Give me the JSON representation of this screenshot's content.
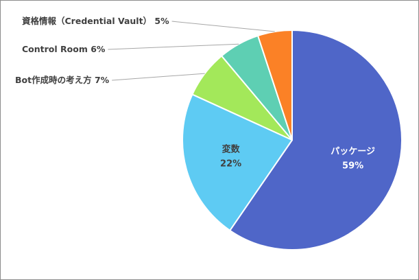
{
  "chart_data": {
    "type": "pie",
    "start_angle_deg": 0,
    "direction": "clockwise",
    "legend": "none",
    "slices": [
      {
        "label": "パッケージ",
        "value": 59,
        "percent_label": "59%",
        "color": "#4f66c8",
        "label_color": "#ffffff",
        "label_position": "inside"
      },
      {
        "label": "変数",
        "value": 22,
        "percent_label": "22%",
        "color": "#5ecbf3",
        "label_color": "#404040",
        "label_position": "inside"
      },
      {
        "label": "Bot作成時の考え方",
        "value": 7,
        "percent_label": "7%",
        "color": "#a3e85a",
        "label_color": "#404040",
        "label_position": "outside"
      },
      {
        "label": "Control Room",
        "value": 6,
        "percent_label": "6%",
        "color": "#5ecfb3",
        "label_color": "#404040",
        "label_position": "outside"
      },
      {
        "label": "資格情報（Credential Vault）",
        "value": 5,
        "percent_label": "5%",
        "color": "#fb8126",
        "label_color": "#404040",
        "label_position": "outside"
      }
    ]
  }
}
